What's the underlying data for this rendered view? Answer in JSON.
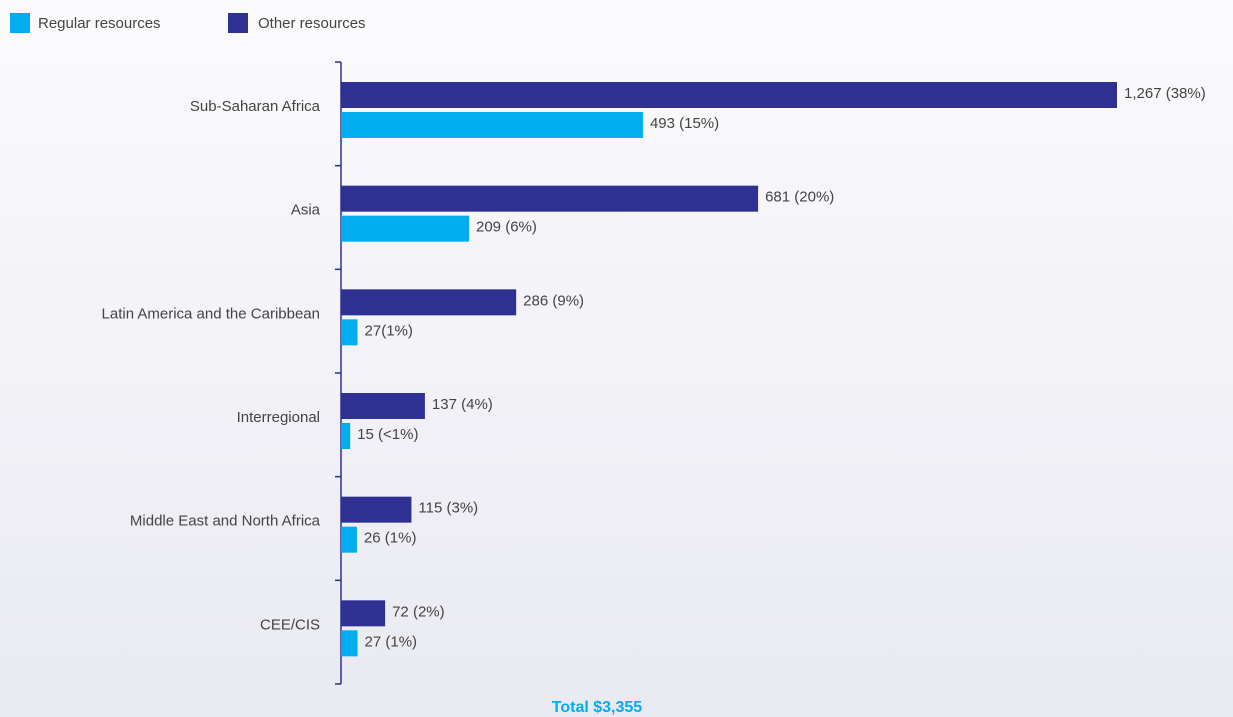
{
  "chart_data": {
    "type": "bar",
    "orientation": "horizontal",
    "categories": [
      "Sub-Saharan Africa",
      "Asia",
      "Latin America and the Caribbean",
      "Interregional",
      "Middle East and North Africa",
      "CEE/CIS"
    ],
    "series": [
      {
        "name": "Regular resources",
        "color": "#00aeef",
        "values": [
          493,
          209,
          27,
          15,
          26,
          27
        ],
        "value_labels": [
          "493 (15%)",
          "209 (6%)",
          "27(1%)",
          "15 (<1%)",
          "26 (1%)",
          "27 (1%)"
        ]
      },
      {
        "name": "Other resources",
        "color": "#2e3192",
        "values": [
          1267,
          681,
          286,
          137,
          115,
          72
        ],
        "value_labels": [
          "1,267 (38%)",
          "681 (20%)",
          "286 (9%)",
          "137 (4%)",
          "115 (3%)",
          "72 (2%)"
        ]
      }
    ],
    "total": "Total $3,355"
  }
}
